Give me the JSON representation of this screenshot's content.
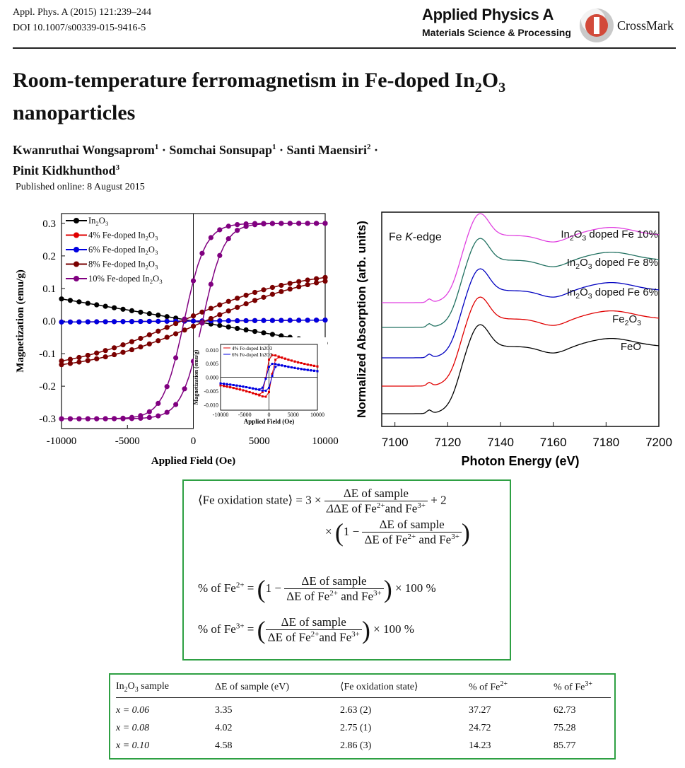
{
  "header": {
    "citation": "Appl. Phys. A (2015) 121:239–244",
    "doi": "DOI 10.1007/s00339-015-9416-5",
    "journal": "Applied Physics A",
    "journal_sub": "Materials Science & Processing",
    "crossmark": "CrossMark"
  },
  "title": {
    "line1_pre": "Room-temperature ferromagnetism in Fe-doped In",
    "line1_sub1": "2",
    "line1_mid": "O",
    "line1_sub2": "3",
    "line2": "nanoparticles"
  },
  "authors": {
    "a1": "Kwanruthai Wongsaprom",
    "a1_sup": "1",
    "a2": "Somchai Sonsupap",
    "a2_sup": "1",
    "a3": "Santi Maensiri",
    "a3_sup": "2",
    "a4": "Pinit Kidkhunthod",
    "a4_sup": "3",
    "sep": " · "
  },
  "published": "Published online: 8 August 2015",
  "chart_data": [
    {
      "type": "line",
      "xlabel": "Applied Field (Oe)",
      "ylabel": "Magnetization (emu/g)",
      "xlim": [
        -10000,
        10000
      ],
      "ylim": [
        -0.33,
        0.33
      ],
      "xticks": [
        "-10000",
        "-5000",
        "0",
        "5000",
        "10000"
      ],
      "yticks": [
        "-0.3",
        "-0.2",
        "-0.1",
        "0.0",
        "0.1",
        "0.2",
        "0.3"
      ],
      "legend": "top-left",
      "series": [
        {
          "name": "In2O3",
          "color": "#000000",
          "model": "linear",
          "slope": -6.8e-06,
          "hc": 0
        },
        {
          "name": "4% Fe-doped In2O3",
          "color": "#e00000",
          "model": "linear",
          "slope": 3e-07,
          "hc": 0
        },
        {
          "name": "6% Fe-doped In2O3",
          "color": "#0000e0",
          "model": "linear",
          "slope": 3e-07,
          "hc": 0
        },
        {
          "name": "8% Fe-doped In2O3",
          "color": "#7a0000",
          "model": "tanh",
          "ms": 0.16,
          "h0": 9000,
          "hc": 900
        },
        {
          "name": "10% Fe-doped In2O3",
          "color": "#800080",
          "model": "tanh",
          "ms": 0.3,
          "h0": 1600,
          "hc": 700
        }
      ],
      "inset": {
        "xlabel": "Applied Field (Oe)",
        "ylabel": "Magnetization (emu/g)",
        "xlim": [
          -10000,
          10000
        ],
        "ylim": [
          -0.012,
          0.012
        ],
        "xticks": [
          "-10000",
          "-5000",
          "0",
          "5000",
          "10000"
        ],
        "yticks": [
          "0.010",
          "0.005",
          "0.000",
          "-0.005",
          "-0.010"
        ],
        "series": [
          {
            "name": "4% Fe-doped In2O3",
            "color": "#e00000"
          },
          {
            "name": "6% Fe-doped In2O3",
            "color": "#0000e0"
          }
        ]
      }
    },
    {
      "type": "line",
      "xlabel": "Photon Energy (eV)",
      "ylabel": "Normalized Absorption (arb. units)",
      "xlim": [
        7095,
        7200
      ],
      "xticks": [
        "7100",
        "7120",
        "7140",
        "7160",
        "7180",
        "7200"
      ],
      "annotation": "Fe K-edge",
      "series": [
        {
          "name": "FeO",
          "color": "#000000",
          "offset": 0.0
        },
        {
          "name": "Fe2O3",
          "color": "#e00000",
          "offset": 0.38
        },
        {
          "name": "In2O3 doped Fe 6%",
          "color": "#0000c0",
          "offset": 0.76
        },
        {
          "name": "In2O3 doped Fe 8%",
          "color": "#207060",
          "offset": 1.14
        },
        {
          "name": "In2O3 doped Fe 10%",
          "color": "#e040e0",
          "offset": 1.52
        }
      ]
    }
  ],
  "chart_text": {
    "legend": [
      {
        "pre": "In",
        "s1": "2",
        "mid": "O",
        "s2": "3"
      },
      {
        "pre": "4% Fe-doped In",
        "s1": "2",
        "mid": "O",
        "s2": "3"
      },
      {
        "pre": "6% Fe-doped In",
        "s1": "2",
        "mid": "O",
        "s2": "3"
      },
      {
        "pre": "8% Fe-doped In",
        "s1": "2",
        "mid": "O",
        "s2": "3"
      },
      {
        "pre": "10% Fe-doped In",
        "s1": "2",
        "mid": "O",
        "s2": "3"
      }
    ],
    "inset_legend": [
      "4% Fe-doped In2O3",
      "6% Fe-doped In2O3"
    ],
    "xanes_labels": [
      {
        "pre": "In",
        "s1": "2",
        "post": "O",
        "s2": "3",
        "tail": " doped Fe 10%"
      },
      {
        "pre": "In",
        "s1": "2",
        "post": "O",
        "s2": "3",
        "tail": " doped Fe 8%"
      },
      {
        "pre": "In",
        "s1": "2",
        "post": "O",
        "s2": "3",
        "tail": " doped Fe 6%"
      },
      {
        "pre": "Fe",
        "s1": "2",
        "post": "O",
        "s2": "3",
        "tail": ""
      },
      {
        "pre": "FeO",
        "s1": "",
        "post": "",
        "s2": "",
        "tail": ""
      }
    ],
    "edge_pre": "Fe ",
    "edge_k": "K",
    "edge_post": "-edge"
  },
  "equations": {
    "eq1_lhs": "⟨Fe oxidation  state⟩ = 3 ×",
    "eq1_num": "ΔE of  sample",
    "eq1_den_a": "ΔE of  Fe",
    "eq1_den_sup1": "2+",
    "eq1_den_b": "and  Fe",
    "eq1_den_sup2": "3+",
    "eq1_tail": "+ 2",
    "eq1b_pre": "×",
    "eq1b_one": "1 −",
    "eq1b_num": "ΔE of sample",
    "eq1b_den_a": "ΔE of Fe",
    "eq1b_den_sup1": "2+",
    "eq1b_den_b": " and Fe",
    "eq1b_den_sup2": "3+",
    "eq2_lhs": "% of Fe",
    "eq2_sup": "2+",
    "eq2_eq": " =",
    "eq2_one": "1 −",
    "eq2_num": "ΔE of  sample",
    "eq2_den_a": "ΔE of Fe",
    "eq2_den_sup1": "2+",
    "eq2_den_b": " and Fe",
    "eq2_den_sup2": "3+",
    "eq2_tail": "× 100 %",
    "eq3_lhs": "% of Fe",
    "eq3_sup": "3+",
    "eq3_eq": " =",
    "eq3_num": "ΔE of sample",
    "eq3_den_a": "ΔE of Fe",
    "eq3_den_sup1": "2+",
    "eq3_den_b": "and Fe",
    "eq3_den_sup2": "3+",
    "eq3_tail": "× 100 %"
  },
  "table": {
    "headers": [
      {
        "pre": "In",
        "s1": "2",
        "mid": "O",
        "s2": "3",
        "post": " sample"
      },
      {
        "pre": "ΔE of sample (eV)"
      },
      {
        "pre": "⟨Fe oxidation  state⟩"
      },
      {
        "pre": "% of Fe",
        "sup": "2+"
      },
      {
        "pre": "% of  Fe",
        "sup": "3+"
      }
    ],
    "rows": [
      {
        "x": "x = 0.06",
        "de": "3.35",
        "ox": "2.63 (2)",
        "fe2": "37.27",
        "fe3": "62.73"
      },
      {
        "x": "x = 0.08",
        "de": "4.02",
        "ox": "2.75 (1)",
        "fe2": "24.72",
        "fe3": "75.28"
      },
      {
        "x": "x = 0.10",
        "de": "4.58",
        "ox": "2.86 (3)",
        "fe2": "14.23",
        "fe3": "85.77"
      }
    ]
  }
}
